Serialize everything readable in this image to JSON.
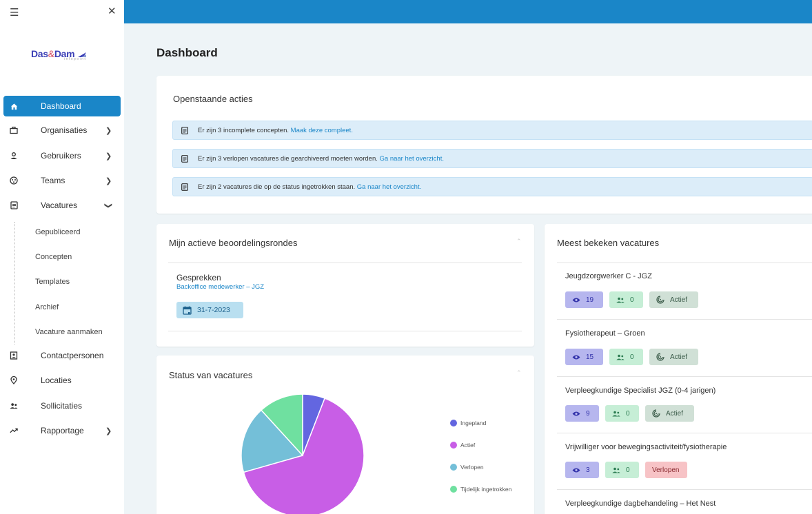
{
  "sidebar": {
    "logo_main": "Das",
    "logo_amp": "&",
    "logo_main2": "Dam",
    "logo_sub": "infopoint",
    "items": [
      {
        "label": "Dashboard",
        "icon": "home-icon"
      },
      {
        "label": "Organisaties",
        "icon": "briefcase-icon"
      },
      {
        "label": "Gebruikers",
        "icon": "user-icon"
      },
      {
        "label": "Teams",
        "icon": "teams-icon"
      },
      {
        "label": "Vacatures",
        "icon": "document-icon"
      },
      {
        "label": "Contactpersonen",
        "icon": "contact-card-icon"
      },
      {
        "label": "Locaties",
        "icon": "location-pin-icon"
      },
      {
        "label": "Sollicitaties",
        "icon": "people-icon"
      },
      {
        "label": "Rapportage",
        "icon": "trend-icon"
      }
    ],
    "sub_items": [
      "Gepubliceerd",
      "Concepten",
      "Templates",
      "Archief",
      "Vacature aanmaken"
    ]
  },
  "page": {
    "title": "Dashboard"
  },
  "actions": {
    "title": "Openstaande acties",
    "alerts": [
      {
        "text": "Er zijn 3 incomplete concepten. ",
        "link": "Maak deze compleet."
      },
      {
        "text": "Er zijn 3 verlopen vacatures die gearchiveerd moeten worden. ",
        "link": "Ga naar het overzicht."
      },
      {
        "text": "Er zijn 2 vacatures die op de status ingetrokken staan. ",
        "link": "Ga naar het overzicht."
      }
    ]
  },
  "rounds": {
    "title": "Mijn actieve beoordelingsrondes",
    "item_title": "Gesprekken",
    "item_link": "Backoffice medewerker – JGZ",
    "item_date": "31-7-2023"
  },
  "status": {
    "title": "Status van vacatures"
  },
  "chart_data": {
    "type": "pie",
    "categories": [
      "Ingepland",
      "Actief",
      "Verlopen",
      "Tijdelijk ingetrokken"
    ],
    "values": [
      1,
      11,
      3,
      2
    ],
    "colors": [
      "#6366e0",
      "#c85ee6",
      "#74bfd8",
      "#6fe0a0"
    ],
    "legend_position": "right"
  },
  "most_viewed": {
    "title": "Meest bekeken vacatures",
    "items": [
      {
        "title": "Jeugdzorgwerker C - JGZ",
        "views": "19",
        "applicants": "0",
        "status": "Actief"
      },
      {
        "title": "Fysiotherapeut – Groen",
        "views": "15",
        "applicants": "0",
        "status": "Actief"
      },
      {
        "title": "Verpleegkundige Specialist JGZ (0-4 jarigen)",
        "views": "9",
        "applicants": "0",
        "status": "Actief"
      },
      {
        "title": "Vrijwilliger voor bewegingsactiviteit/fysiotherapie",
        "views": "3",
        "applicants": "0",
        "status": "Verlopen"
      },
      {
        "title": "Verpleegkundige dagbehandeling – Het Nest",
        "views": "",
        "applicants": "",
        "status": ""
      }
    ]
  }
}
